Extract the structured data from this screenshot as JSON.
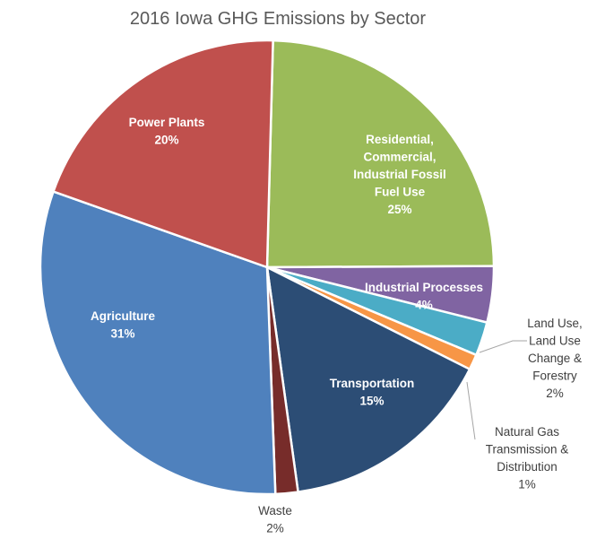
{
  "chart_data": {
    "type": "pie",
    "title": "2016 Iowa GHG Emissions by Sector",
    "slices": [
      {
        "label_lines": [
          "Residential,",
          "Commercial,",
          "Industrial Fossil",
          "Fuel Use"
        ],
        "value_label": "25%",
        "value": 24.5,
        "color": "#9BBB59"
      },
      {
        "label_lines": [
          "Industrial Processes"
        ],
        "value_label": "4%",
        "value": 4.0,
        "color": "#8064A2"
      },
      {
        "label_lines": [
          "Land Use,",
          "Land Use",
          "Change &",
          "Forestry"
        ],
        "value_label": "2%",
        "value": 2.4,
        "color": "#4BACC6"
      },
      {
        "label_lines": [
          "Natural Gas",
          "Transmission &",
          "Distribution"
        ],
        "value_label": "1%",
        "value": 1.1,
        "color": "#F79646"
      },
      {
        "label_lines": [
          "Transportation"
        ],
        "value_label": "15%",
        "value": 15.4,
        "color": "#2C4D75"
      },
      {
        "label_lines": [
          "Waste"
        ],
        "value_label": "2%",
        "value": 1.6,
        "color": "#772C2A"
      },
      {
        "label_lines": [
          "Agriculture"
        ],
        "value_label": "31%",
        "value": 31.0,
        "color": "#4F81BD"
      },
      {
        "label_lines": [
          "Power Plants"
        ],
        "value_label": "20%",
        "value": 20.0,
        "color": "#C0504D"
      }
    ],
    "start_angle_deg": 1.5,
    "direction": "clockwise",
    "legend": "none",
    "data_labels": "category-and-percent"
  }
}
